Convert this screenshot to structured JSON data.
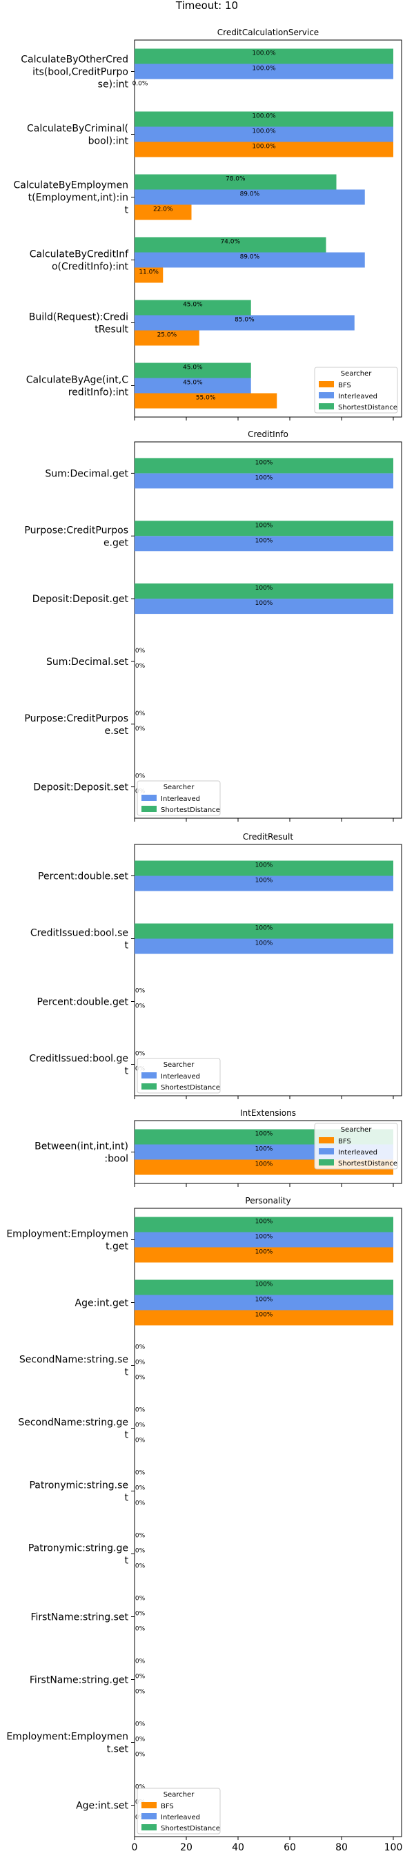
{
  "suptitle": "Timeout: 10",
  "colors": {
    "BFS": "#ff8c00",
    "Interleaved": "#6495ed",
    "ShortestDistance": "#3cb371"
  },
  "x_axis": {
    "ticks": [
      0,
      20,
      40,
      60,
      80,
      100
    ],
    "xlim": [
      0,
      107
    ]
  },
  "legend": {
    "title": "Searcher"
  },
  "chart_data": [
    {
      "type": "bar",
      "orientation": "horizontal",
      "title": "CreditCalculationService",
      "legend_placement": "bottom-right",
      "legend_entries": [
        "BFS",
        "Interleaved",
        "ShortestDistance"
      ],
      "categories": [
        [
          "CalculateByOtherCred",
          "its(bool,CreditPurpo",
          "se):int"
        ],
        [
          "CalculateByCriminal(",
          "bool):int"
        ],
        [
          "CalculateByEmploymen",
          "t(Employment,int):in",
          "t"
        ],
        [
          "CalculateByCreditInf",
          "o(CreditInfo):int"
        ],
        [
          "Build(Request):Credi",
          "tResult"
        ],
        [
          "CalculateByAge(int,C",
          "reditInfo):int"
        ]
      ],
      "series": [
        {
          "name": "BFS",
          "values": [
            0,
            100,
            22,
            11,
            25,
            55
          ],
          "labels": [
            "0.0%",
            "100.0%",
            "22.0%",
            "11.0%",
            "25.0%",
            "55.0%"
          ]
        },
        {
          "name": "Interleaved",
          "values": [
            100,
            100,
            89,
            89,
            85,
            45
          ],
          "labels": [
            "100.0%",
            "100.0%",
            "89.0%",
            "89.0%",
            "85.0%",
            "45.0%"
          ]
        },
        {
          "name": "ShortestDistance",
          "values": [
            100,
            100,
            78,
            74,
            45,
            45
          ],
          "labels": [
            "100.0%",
            "100.0%",
            "78.0%",
            "74.0%",
            "45.0%",
            "45.0%"
          ]
        }
      ]
    },
    {
      "type": "bar",
      "orientation": "horizontal",
      "title": "CreditInfo",
      "legend_placement": "bottom-left",
      "legend_entries": [
        "Interleaved",
        "ShortestDistance"
      ],
      "categories": [
        [
          "Sum:Decimal.get"
        ],
        [
          "Purpose:CreditPurpos",
          "e.get"
        ],
        [
          "Deposit:Deposit.get"
        ],
        [
          "Sum:Decimal.set"
        ],
        [
          "Purpose:CreditPurpos",
          "e.set"
        ],
        [
          "Deposit:Deposit.set"
        ]
      ],
      "series": [
        {
          "name": "Interleaved",
          "values": [
            100,
            100,
            100,
            0,
            0,
            0
          ],
          "labels": [
            "100%",
            "100%",
            "100%",
            "0%",
            "0%",
            "0%"
          ]
        },
        {
          "name": "ShortestDistance",
          "values": [
            100,
            100,
            100,
            0,
            0,
            0
          ],
          "labels": [
            "100%",
            "100%",
            "100%",
            "0%",
            "0%",
            "0%"
          ]
        }
      ]
    },
    {
      "type": "bar",
      "orientation": "horizontal",
      "title": "CreditResult",
      "legend_placement": "bottom-left",
      "legend_entries": [
        "Interleaved",
        "ShortestDistance"
      ],
      "categories": [
        [
          "Percent:double.set"
        ],
        [
          "CreditIssued:bool.se",
          "t"
        ],
        [
          "Percent:double.get"
        ],
        [
          "CreditIssued:bool.ge",
          "t"
        ]
      ],
      "series": [
        {
          "name": "Interleaved",
          "values": [
            100,
            100,
            0,
            0
          ],
          "labels": [
            "100%",
            "100%",
            "0%",
            "0%"
          ]
        },
        {
          "name": "ShortestDistance",
          "values": [
            100,
            100,
            0,
            0
          ],
          "labels": [
            "100%",
            "100%",
            "0%",
            "0%"
          ]
        }
      ]
    },
    {
      "type": "bar",
      "orientation": "horizontal",
      "title": "IntExtensions",
      "legend_placement": "upper-right",
      "legend_entries": [
        "BFS",
        "Interleaved",
        "ShortestDistance"
      ],
      "categories": [
        [
          "Between(int,int,int)",
          ":bool"
        ]
      ],
      "series": [
        {
          "name": "BFS",
          "values": [
            100
          ],
          "labels": [
            "100%"
          ]
        },
        {
          "name": "Interleaved",
          "values": [
            100
          ],
          "labels": [
            "100%"
          ]
        },
        {
          "name": "ShortestDistance",
          "values": [
            100
          ],
          "labels": [
            "100%"
          ]
        }
      ]
    },
    {
      "type": "bar",
      "orientation": "horizontal",
      "title": "Personality",
      "legend_placement": "bottom-left",
      "legend_entries": [
        "BFS",
        "Interleaved",
        "ShortestDistance"
      ],
      "categories": [
        [
          "Employment:Employmen",
          "t.get"
        ],
        [
          "Age:int.get"
        ],
        [
          "SecondName:string.se",
          "t"
        ],
        [
          "SecondName:string.ge",
          "t"
        ],
        [
          "Patronymic:string.se",
          "t"
        ],
        [
          "Patronymic:string.ge",
          "t"
        ],
        [
          "FirstName:string.set"
        ],
        [
          "FirstName:string.get"
        ],
        [
          "Employment:Employmen",
          "t.set"
        ],
        [
          "Age:int.set"
        ]
      ],
      "series": [
        {
          "name": "BFS",
          "values": [
            100,
            100,
            0,
            0,
            0,
            0,
            0,
            0,
            0,
            0
          ],
          "labels": [
            "100%",
            "100%",
            "0%",
            "0%",
            "0%",
            "0%",
            "0%",
            "0%",
            "0%",
            "0%"
          ]
        },
        {
          "name": "Interleaved",
          "values": [
            100,
            100,
            0,
            0,
            0,
            0,
            0,
            0,
            0,
            0
          ],
          "labels": [
            "100%",
            "100%",
            "0%",
            "0%",
            "0%",
            "0%",
            "0%",
            "0%",
            "0%",
            "0%"
          ]
        },
        {
          "name": "ShortestDistance",
          "values": [
            100,
            100,
            0,
            0,
            0,
            0,
            0,
            0,
            0,
            0
          ],
          "labels": [
            "100%",
            "100%",
            "0%",
            "0%",
            "0%",
            "0%",
            "0%",
            "0%",
            "0%",
            "0%"
          ]
        }
      ]
    }
  ]
}
